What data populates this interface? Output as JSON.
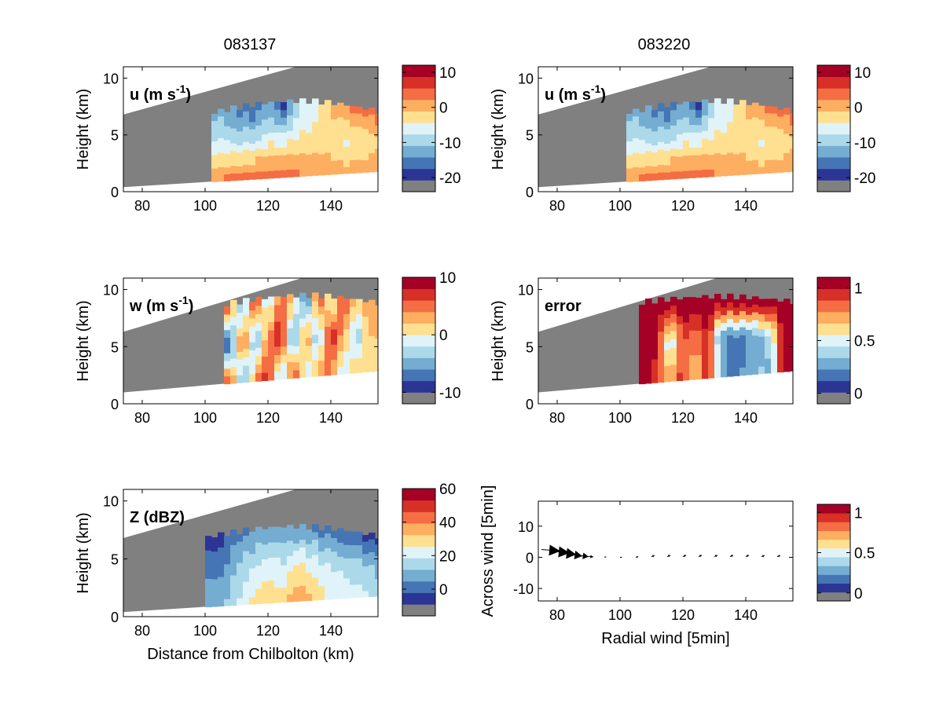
{
  "figure": {
    "column_titles": [
      "083137",
      "083220"
    ],
    "colors": {
      "radar_mask": "#808080",
      "frame": "#000000",
      "background": "#ffffff",
      "colormap": [
        "#808080",
        "#2c3594",
        "#4575b4",
        "#74add1",
        "#abd9e9",
        "#e0f3f8",
        "#fee090",
        "#fdae61",
        "#f46d43",
        "#d73027",
        "#a50026"
      ]
    }
  },
  "chart_data": [
    {
      "id": "u_083137",
      "type": "heatmap",
      "panel_label": "u (m s-1)",
      "xlabel": "",
      "ylabel": "Height (km)",
      "xlim": [
        74,
        155
      ],
      "ylim": [
        0,
        11
      ],
      "x_ticks": [
        80,
        100,
        120,
        140
      ],
      "y_ticks": [
        0,
        5,
        10
      ],
      "colorbar": {
        "range": [
          -24,
          12
        ],
        "ticks": [
          10,
          0,
          -10,
          -20
        ]
      },
      "beam_top": [
        [
          74,
          6.8
        ],
        [
          118,
          11
        ]
      ],
      "beam_bottom": [
        [
          74,
          0.4
        ],
        [
          155,
          1.8
        ]
      ],
      "echo_region": {
        "x_range": [
          102,
          155
        ],
        "top_range": [
          6.0,
          8.0
        ]
      },
      "field_values": {
        "x": [
          105,
          110,
          115,
          120,
          125,
          130,
          135,
          140,
          145,
          150,
          155
        ],
        "z_low": [
          2,
          3,
          4,
          3,
          3,
          2,
          2,
          1,
          0,
          0,
          2
        ],
        "z_mid": [
          -6,
          -8,
          -8,
          -5,
          -6,
          -4,
          -3,
          -4,
          -5,
          -4,
          -2
        ],
        "z_high": [
          -12,
          -14,
          -16,
          -12,
          -18,
          -8,
          -6,
          0,
          2,
          3,
          4
        ]
      }
    },
    {
      "id": "u_083220",
      "type": "heatmap",
      "panel_label": "u (m s-1)",
      "xlabel": "",
      "ylabel": "Height (km)",
      "xlim": [
        74,
        155
      ],
      "ylim": [
        0,
        11
      ],
      "x_ticks": [
        80,
        100,
        120,
        140
      ],
      "y_ticks": [
        0,
        5,
        10
      ],
      "colorbar": {
        "range": [
          -24,
          12
        ],
        "ticks": [
          10,
          0,
          -10,
          -20
        ]
      },
      "beam_top": [
        [
          74,
          6.8
        ],
        [
          118,
          11
        ]
      ],
      "beam_bottom": [
        [
          74,
          0.4
        ],
        [
          155,
          1.8
        ]
      ],
      "echo_region": {
        "x_range": [
          102,
          155
        ],
        "top_range": [
          6.0,
          8.0
        ]
      },
      "field_values": {
        "x": [
          105,
          110,
          115,
          120,
          125,
          130,
          135,
          140,
          145,
          150,
          155
        ],
        "z_low": [
          2,
          3,
          4,
          3,
          3,
          2,
          2,
          1,
          0,
          0,
          2
        ],
        "z_mid": [
          -6,
          -8,
          -8,
          -5,
          -6,
          -4,
          -3,
          -4,
          -5,
          -4,
          -2
        ],
        "z_high": [
          -12,
          -14,
          -16,
          -12,
          -18,
          -8,
          -6,
          0,
          2,
          3,
          4
        ]
      }
    },
    {
      "id": "w_083137",
      "type": "heatmap",
      "panel_label": "w (m s-1)",
      "xlabel": "",
      "ylabel": "Height (km)",
      "xlim": [
        74,
        155
      ],
      "ylim": [
        0,
        11
      ],
      "x_ticks": [
        80,
        100,
        120,
        140
      ],
      "y_ticks": [
        0,
        5,
        10
      ],
      "colorbar": {
        "range": [
          -12,
          10
        ],
        "ticks": [
          10,
          0,
          -10
        ]
      },
      "beam_top": [
        [
          74,
          6.3
        ],
        [
          128,
          11
        ]
      ],
      "beam_bottom": [
        [
          74,
          1.0
        ],
        [
          155,
          2.9
        ]
      ],
      "echo_region": {
        "x_range": [
          106,
          155
        ],
        "top_range": [
          8.0,
          9.5
        ]
      },
      "field_values": {
        "x": [
          108,
          112,
          116,
          120,
          124,
          128,
          132,
          136,
          140,
          144,
          148,
          152
        ],
        "z_low": [
          5,
          -6,
          3,
          8,
          -4,
          6,
          -2,
          3,
          5,
          -3,
          2,
          1
        ],
        "z_mid": [
          -8,
          7,
          -6,
          4,
          9,
          -7,
          5,
          -5,
          8,
          3,
          -4,
          2
        ],
        "z_high": [
          4,
          -5,
          8,
          -3,
          6,
          2,
          -8,
          6,
          -2,
          7,
          1,
          3
        ]
      }
    },
    {
      "id": "error_083220",
      "type": "heatmap",
      "panel_label": "error",
      "xlabel": "",
      "ylabel": "Height (km)",
      "xlim": [
        74,
        155
      ],
      "ylim": [
        0,
        11
      ],
      "x_ticks": [
        80,
        100,
        120,
        140
      ],
      "y_ticks": [
        0,
        5,
        10
      ],
      "colorbar": {
        "range": [
          -0.1,
          1.1
        ],
        "ticks": [
          1,
          0.5,
          0
        ]
      },
      "beam_top": [
        [
          74,
          6.3
        ],
        [
          128,
          11
        ]
      ],
      "beam_bottom": [
        [
          74,
          1.0
        ],
        [
          155,
          2.9
        ]
      ],
      "echo_region": {
        "x_range": [
          106,
          155
        ],
        "top_range": [
          8.4,
          9.4
        ]
      },
      "field_values": {
        "x": [
          108,
          112,
          116,
          120,
          124,
          128,
          132,
          136,
          140,
          144,
          148,
          152
        ],
        "z_low": [
          1.1,
          0.9,
          0.7,
          0.95,
          0.6,
          1.0,
          0.3,
          0.2,
          0.25,
          0.35,
          0.3,
          1.1
        ],
        "z_mid": [
          1.1,
          1.0,
          0.35,
          0.9,
          0.8,
          1.0,
          0.25,
          0.15,
          0.2,
          0.3,
          0.4,
          1.1
        ],
        "z_high": [
          1.1,
          1.1,
          1.1,
          1.1,
          1.1,
          1.1,
          1.1,
          1.1,
          1.1,
          1.1,
          1.1,
          1.1
        ]
      }
    },
    {
      "id": "Z_083137",
      "type": "heatmap",
      "panel_label": "Z (dBZ)",
      "xlabel": "Distance from Chilbolton (km)",
      "ylabel": "Height (km)",
      "xlim": [
        74,
        155
      ],
      "ylim": [
        0,
        11
      ],
      "x_ticks": [
        80,
        100,
        120,
        140
      ],
      "y_ticks": [
        0,
        5,
        10
      ],
      "colorbar": {
        "range": [
          -16,
          60
        ],
        "ticks": [
          60,
          40,
          20,
          0
        ]
      },
      "beam_top": [
        [
          74,
          6.8
        ],
        [
          118,
          11
        ]
      ],
      "beam_bottom": [
        [
          74,
          0.4
        ],
        [
          155,
          1.8
        ]
      ],
      "echo_region": {
        "x_range": [
          100,
          155
        ],
        "top_range": [
          6.0,
          7.8
        ]
      },
      "field_values": {
        "x": [
          105,
          110,
          115,
          120,
          125,
          130,
          135,
          140,
          145,
          150,
          155
        ],
        "z_low": [
          8,
          18,
          26,
          30,
          28,
          40,
          30,
          24,
          22,
          20,
          14
        ],
        "z_mid": [
          4,
          12,
          18,
          22,
          20,
          26,
          22,
          18,
          16,
          14,
          10
        ],
        "z_high": [
          -4,
          2,
          6,
          8,
          6,
          8,
          4,
          2,
          0,
          -2,
          -4
        ]
      }
    },
    {
      "id": "wind_083220",
      "type": "scatter",
      "panel_label": "",
      "xlabel": "Radial wind [5min]",
      "ylabel": "Across wind [5min]",
      "xlim": [
        74,
        155
      ],
      "ylim": [
        -14,
        18
      ],
      "x_ticks": [
        80,
        100,
        120,
        140
      ],
      "y_ticks": [
        -10,
        0,
        10
      ],
      "colorbar": {
        "range": [
          -0.1,
          1.1
        ],
        "ticks": [
          1,
          0.5,
          0
        ]
      },
      "arrows": [
        {
          "x": 75,
          "y": 2.5,
          "dx": 6,
          "dy": -0.5
        },
        {
          "x": 78,
          "y": 2.0,
          "dx": 6,
          "dy": -0.6
        },
        {
          "x": 81,
          "y": 1.5,
          "dx": 5,
          "dy": -0.6
        },
        {
          "x": 84,
          "y": 1.0,
          "dx": 4,
          "dy": -0.6
        },
        {
          "x": 87,
          "y": 0.6,
          "dx": 3,
          "dy": -0.4
        },
        {
          "x": 90,
          "y": 0.3,
          "dx": 1.5,
          "dy": -0.2
        },
        {
          "x": 95,
          "y": 0.1,
          "dx": 0.6,
          "dy": 0
        },
        {
          "x": 100,
          "y": 0.0,
          "dx": 0.6,
          "dy": 0
        },
        {
          "x": 105,
          "y": 0.0,
          "dx": 0.8,
          "dy": 0.2
        },
        {
          "x": 110,
          "y": 0.2,
          "dx": 1.0,
          "dy": 0.4
        },
        {
          "x": 115,
          "y": 0.2,
          "dx": 1.0,
          "dy": 0.5
        },
        {
          "x": 120,
          "y": 0.2,
          "dx": 1.0,
          "dy": 0.5
        },
        {
          "x": 125,
          "y": 0.2,
          "dx": 1.0,
          "dy": 0.5
        },
        {
          "x": 130,
          "y": 0.2,
          "dx": 1.0,
          "dy": 0.5
        },
        {
          "x": 135,
          "y": 0.2,
          "dx": 1.0,
          "dy": 0.5
        },
        {
          "x": 140,
          "y": 0.2,
          "dx": 1.0,
          "dy": 0.5
        },
        {
          "x": 145,
          "y": 0.2,
          "dx": 1.0,
          "dy": 0.4
        },
        {
          "x": 150,
          "y": 0.2,
          "dx": 1.0,
          "dy": 0.4
        }
      ]
    }
  ]
}
